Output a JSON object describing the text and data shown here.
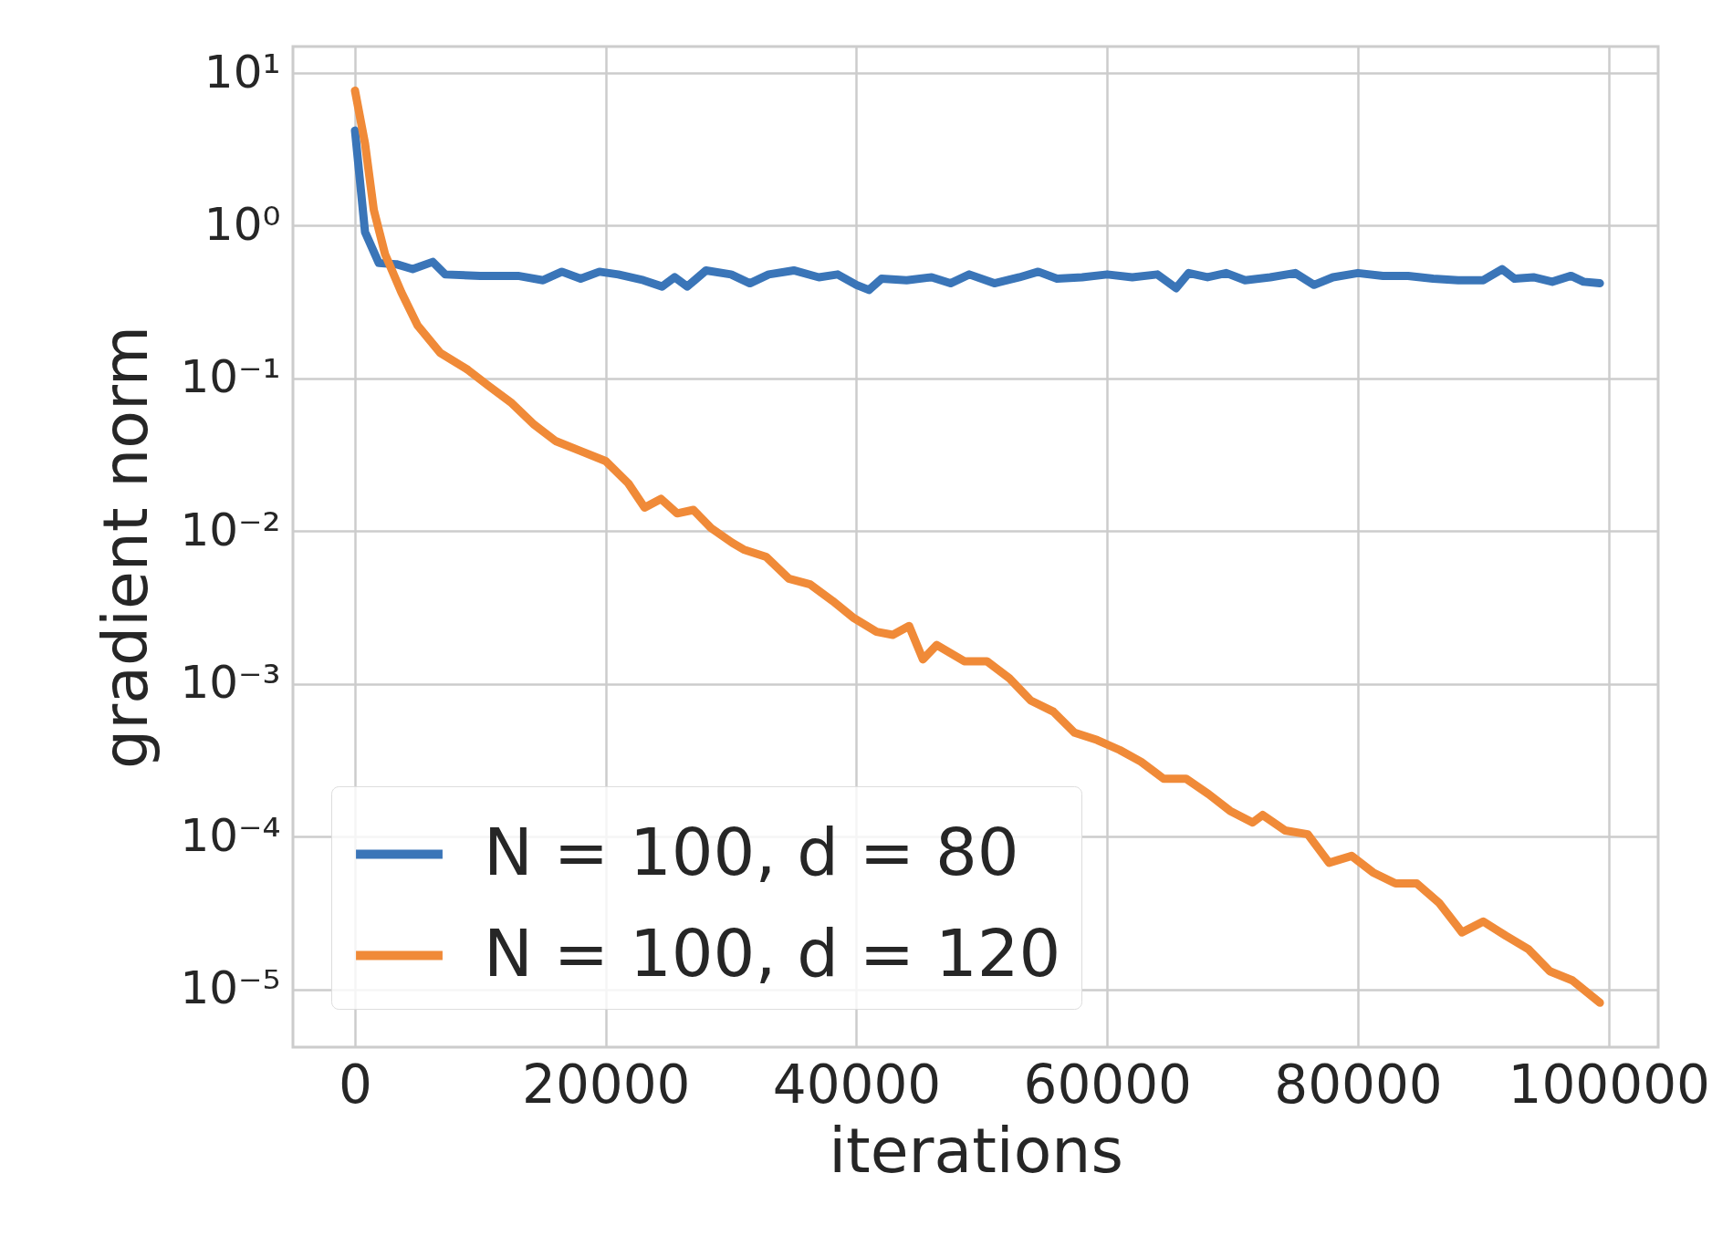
{
  "chart_data": {
    "type": "line",
    "xlabel": "iterations",
    "ylabel": "gradient norm",
    "log": "y",
    "grid": true,
    "legend": "bottom left",
    "marker": "none",
    "line_style": "solid",
    "xlim": [
      -4950,
      103950
    ],
    "xticks": [
      0,
      20000,
      40000,
      60000,
      80000,
      100000
    ],
    "ylim": [
      4.2e-06,
      14.9
    ],
    "yticks": [
      {
        "value": 10,
        "label": "10¹"
      },
      {
        "value": 1,
        "label": "10⁰"
      },
      {
        "value": 0.1,
        "label": "10⁻¹"
      },
      {
        "value": 0.01,
        "label": "10⁻²"
      },
      {
        "value": 0.001,
        "label": "10⁻³"
      },
      {
        "value": 0.0001,
        "label": "10⁻⁴"
      },
      {
        "value": 1e-05,
        "label": "10⁻⁵"
      }
    ],
    "series": [
      {
        "name": "N = 100, d = 80",
        "color": "#3a75b8",
        "x": [
          0,
          800,
          1900,
          3300,
          4600,
          6200,
          7200,
          10000,
          13000,
          15000,
          16500,
          18000,
          19500,
          21000,
          23000,
          24500,
          25500,
          26500,
          28000,
          30000,
          31500,
          33000,
          35000,
          37000,
          38500,
          40000,
          41000,
          42000,
          44000,
          46000,
          47500,
          49000,
          51000,
          53000,
          54500,
          56000,
          58000,
          60000,
          62000,
          64000,
          65500,
          66500,
          68000,
          69500,
          71000,
          73000,
          75000,
          76500,
          78000,
          80000,
          82000,
          84000,
          86000,
          88000,
          90000,
          91500,
          92500,
          94000,
          95500,
          97000,
          98000,
          99300
        ],
        "values": [
          4.2,
          0.91,
          0.57,
          0.56,
          0.52,
          0.58,
          0.48,
          0.47,
          0.47,
          0.44,
          0.5,
          0.45,
          0.5,
          0.48,
          0.44,
          0.4,
          0.46,
          0.4,
          0.51,
          0.48,
          0.42,
          0.48,
          0.51,
          0.46,
          0.48,
          0.41,
          0.38,
          0.45,
          0.44,
          0.46,
          0.42,
          0.48,
          0.42,
          0.46,
          0.5,
          0.45,
          0.46,
          0.48,
          0.46,
          0.48,
          0.39,
          0.49,
          0.46,
          0.49,
          0.44,
          0.46,
          0.49,
          0.41,
          0.46,
          0.49,
          0.47,
          0.47,
          0.45,
          0.44,
          0.44,
          0.52,
          0.45,
          0.46,
          0.43,
          0.47,
          0.43,
          0.42
        ]
      },
      {
        "name": "N = 100, d = 120",
        "color": "#f08a38",
        "x": [
          0,
          800,
          1500,
          2400,
          3700,
          5000,
          6800,
          9000,
          10700,
          12500,
          14300,
          16000,
          17800,
          20000,
          21800,
          23100,
          24400,
          25700,
          27000,
          28400,
          30100,
          31000,
          32800,
          34600,
          36300,
          38100,
          39800,
          41600,
          42900,
          44200,
          45300,
          46400,
          48600,
          50400,
          52200,
          53900,
          55700,
          57400,
          59200,
          61000,
          62700,
          64500,
          66300,
          68100,
          69800,
          71600,
          72400,
          74200,
          76000,
          77700,
          79500,
          81200,
          83000,
          84700,
          86500,
          88300,
          90000,
          91800,
          93600,
          95300,
          97100,
          99300
        ],
        "values": [
          7.67,
          3.45,
          1.27,
          0.65,
          0.366,
          0.222,
          0.147,
          0.114,
          0.089,
          0.069,
          0.0498,
          0.039,
          0.034,
          0.0288,
          0.0206,
          0.0143,
          0.0163,
          0.0131,
          0.0138,
          0.0105,
          0.0084,
          0.0076,
          0.0068,
          0.0049,
          0.0045,
          0.0035,
          0.0027,
          0.0022,
          0.0021,
          0.0024,
          0.00145,
          0.0018,
          0.00141,
          0.00141,
          0.00109,
          0.00078,
          0.00066,
          0.00048,
          0.00043,
          0.00037,
          0.00031,
          0.00024,
          0.00024,
          0.00019,
          0.000148,
          0.000124,
          0.000139,
          0.00011,
          0.000104,
          6.76e-05,
          7.5e-05,
          5.85e-05,
          4.95e-05,
          4.95e-05,
          3.68e-05,
          2.37e-05,
          2.79e-05,
          2.25e-05,
          1.84e-05,
          1.32e-05,
          1.15e-05,
          8.2e-06
        ]
      }
    ]
  }
}
